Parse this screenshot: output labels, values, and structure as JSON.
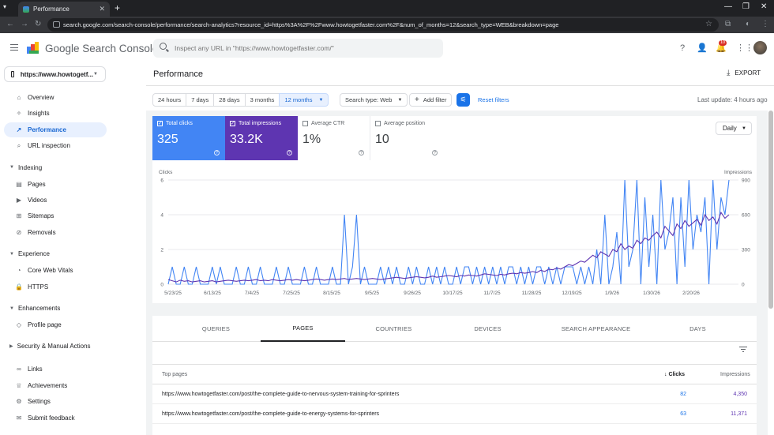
{
  "browser": {
    "tab_title": "Performance",
    "url": "search.google.com/search-console/performance/search-analytics?resource_id=https%3A%2F%2Fwww.howtogetfaster.com%2F&num_of_months=12&search_type=WEB&breakdown=page"
  },
  "header": {
    "brand": "Google Search Console",
    "search_placeholder": "Inspect any URL in \"https://www.howtogetfaster.com/\"",
    "notification_count": "10",
    "icons": [
      "help-icon",
      "manage-accounts-icon",
      "notifications-icon",
      "apps-icon"
    ]
  },
  "sidebar": {
    "property": "https://www.howtogetf...",
    "items_top": [
      {
        "label": "Overview",
        "icon": "home-icon"
      },
      {
        "label": "Insights",
        "icon": "insights-icon"
      },
      {
        "label": "Performance",
        "icon": "trending-icon"
      },
      {
        "label": "URL inspection",
        "icon": "search-icon"
      }
    ],
    "sections": [
      {
        "title": "Indexing",
        "items": [
          {
            "label": "Pages",
            "icon": "pages-icon"
          },
          {
            "label": "Videos",
            "icon": "videos-icon"
          },
          {
            "label": "Sitemaps",
            "icon": "sitemaps-icon"
          },
          {
            "label": "Removals",
            "icon": "removals-icon"
          }
        ]
      },
      {
        "title": "Experience",
        "items": [
          {
            "label": "Core Web Vitals",
            "icon": "speed-icon"
          },
          {
            "label": "HTTPS",
            "icon": "lock-icon"
          }
        ]
      },
      {
        "title": "Enhancements",
        "items": [
          {
            "label": "Profile page",
            "icon": "diamond-icon"
          }
        ]
      }
    ],
    "security": "Security & Manual Actions",
    "items_bottom": [
      {
        "label": "Links",
        "icon": "link-icon"
      },
      {
        "label": "Achievements",
        "icon": "achievements-icon"
      },
      {
        "label": "Settings",
        "icon": "settings-icon"
      },
      {
        "label": "Submit feedback",
        "icon": "feedback-icon"
      }
    ]
  },
  "main": {
    "title": "Performance",
    "export": "EXPORT",
    "date_ranges": [
      "24 hours",
      "7 days",
      "28 days",
      "3 months",
      "12 months"
    ],
    "selected_range": "12 months",
    "search_type": "Search type: Web",
    "add_filter": "Add filter",
    "reset_filters": "Reset filters",
    "last_update": "Last update: 4 hours ago",
    "granularity": "Daily"
  },
  "metrics": [
    {
      "label": "Total clicks",
      "value": "325",
      "checked": true,
      "color": "#4285f4"
    },
    {
      "label": "Total impressions",
      "value": "33.2K",
      "checked": true,
      "color": "#5e35b1"
    },
    {
      "label": "Average CTR",
      "value": "1%",
      "checked": false
    },
    {
      "label": "Average position",
      "value": "10",
      "checked": false
    }
  ],
  "chart_data": {
    "type": "line",
    "left_axis_label": "Clicks",
    "right_axis_label": "Impressions",
    "left_ticks": [
      "0",
      "2",
      "4",
      "6"
    ],
    "right_ticks": [
      "0",
      "300",
      "600",
      "900"
    ],
    "ylim_left": [
      0,
      6
    ],
    "ylim_right": [
      0,
      900
    ],
    "x_ticks": [
      "5/23/25",
      "6/13/25",
      "7/4/25",
      "7/25/25",
      "8/15/25",
      "9/5/25",
      "9/26/25",
      "10/17/25",
      "11/7/25",
      "11/28/25",
      "12/19/25",
      "1/9/26",
      "1/30/26",
      "2/20/26"
    ],
    "series": [
      {
        "name": "Clicks",
        "color": "#4285f4",
        "values": [
          0,
          1,
          0,
          0,
          1,
          0,
          0,
          1,
          0,
          0,
          0,
          1,
          0,
          1,
          0,
          0,
          0,
          1,
          0,
          0,
          1,
          0,
          0,
          1,
          0,
          0,
          0,
          1,
          0,
          0,
          1,
          0,
          0,
          0,
          1,
          0,
          0,
          1,
          0,
          0,
          0,
          1,
          0,
          0,
          4,
          0,
          1,
          4,
          0,
          1,
          0,
          0,
          0,
          1,
          0,
          1,
          0,
          1,
          0,
          0,
          1,
          0,
          1,
          0,
          0,
          1,
          0,
          1,
          0,
          1,
          0,
          0,
          1,
          0,
          1,
          1,
          0,
          1,
          0,
          1,
          0,
          1,
          0,
          1,
          0,
          1,
          1,
          0,
          1,
          0,
          1,
          0,
          1,
          1,
          0,
          1,
          0,
          1,
          0,
          1,
          1,
          1,
          0,
          1,
          0,
          1,
          0,
          2,
          0,
          4,
          0,
          1,
          3,
          0,
          6,
          1,
          2,
          6,
          0,
          5,
          1,
          4,
          0,
          6,
          2,
          3,
          5,
          0,
          5,
          1,
          6,
          2,
          4,
          3,
          5,
          0,
          6,
          2,
          5,
          4,
          6
        ]
      },
      {
        "name": "Impressions",
        "color": "#5e35b1",
        "values": [
          40,
          30,
          20,
          35,
          25,
          30,
          20,
          25,
          30,
          20,
          25,
          30,
          20,
          25,
          30,
          35,
          30,
          25,
          30,
          35,
          30,
          35,
          40,
          30,
          35,
          30,
          40,
          35,
          30,
          35,
          40,
          35,
          40,
          35,
          30,
          35,
          40,
          45,
          40,
          35,
          40,
          45,
          40,
          45,
          50,
          40,
          45,
          50,
          45,
          40,
          45,
          50,
          45,
          40,
          45,
          50,
          55,
          60,
          55,
          50,
          55,
          60,
          65,
          60,
          55,
          60,
          70,
          60,
          65,
          70,
          75,
          70,
          65,
          75,
          70,
          80,
          75,
          70,
          80,
          90,
          85,
          80,
          75,
          85,
          80,
          90,
          95,
          90,
          100,
          95,
          100,
          110,
          100,
          120,
          110,
          130,
          125,
          140,
          130,
          150,
          170,
          160,
          180,
          200,
          190,
          220,
          250,
          230,
          280,
          260,
          240,
          300,
          280,
          350,
          300,
          330,
          310,
          380,
          350,
          400,
          380,
          420,
          450,
          400,
          500,
          460,
          420,
          520,
          480,
          550,
          500,
          530,
          560,
          510,
          600,
          550,
          580,
          520,
          620,
          570,
          600
        ]
      }
    ]
  },
  "table": {
    "tabs": [
      "QUERIES",
      "PAGES",
      "COUNTRIES",
      "DEVICES",
      "SEARCH APPEARANCE",
      "DAYS"
    ],
    "active_tab": "PAGES",
    "col_page": "Top pages",
    "col_clicks": "Clicks",
    "col_impressions": "Impressions",
    "rows": [
      {
        "page": "https://www.howtogetfaster.com/post/the-complete-guide-to-nervous-system-training-for-sprinters",
        "clicks": "82",
        "impressions": "4,350"
      },
      {
        "page": "https://www.howtogetfaster.com/post/the-complete-guide-to-energy-systems-for-sprinters",
        "clicks": "63",
        "impressions": "11,371"
      }
    ]
  }
}
